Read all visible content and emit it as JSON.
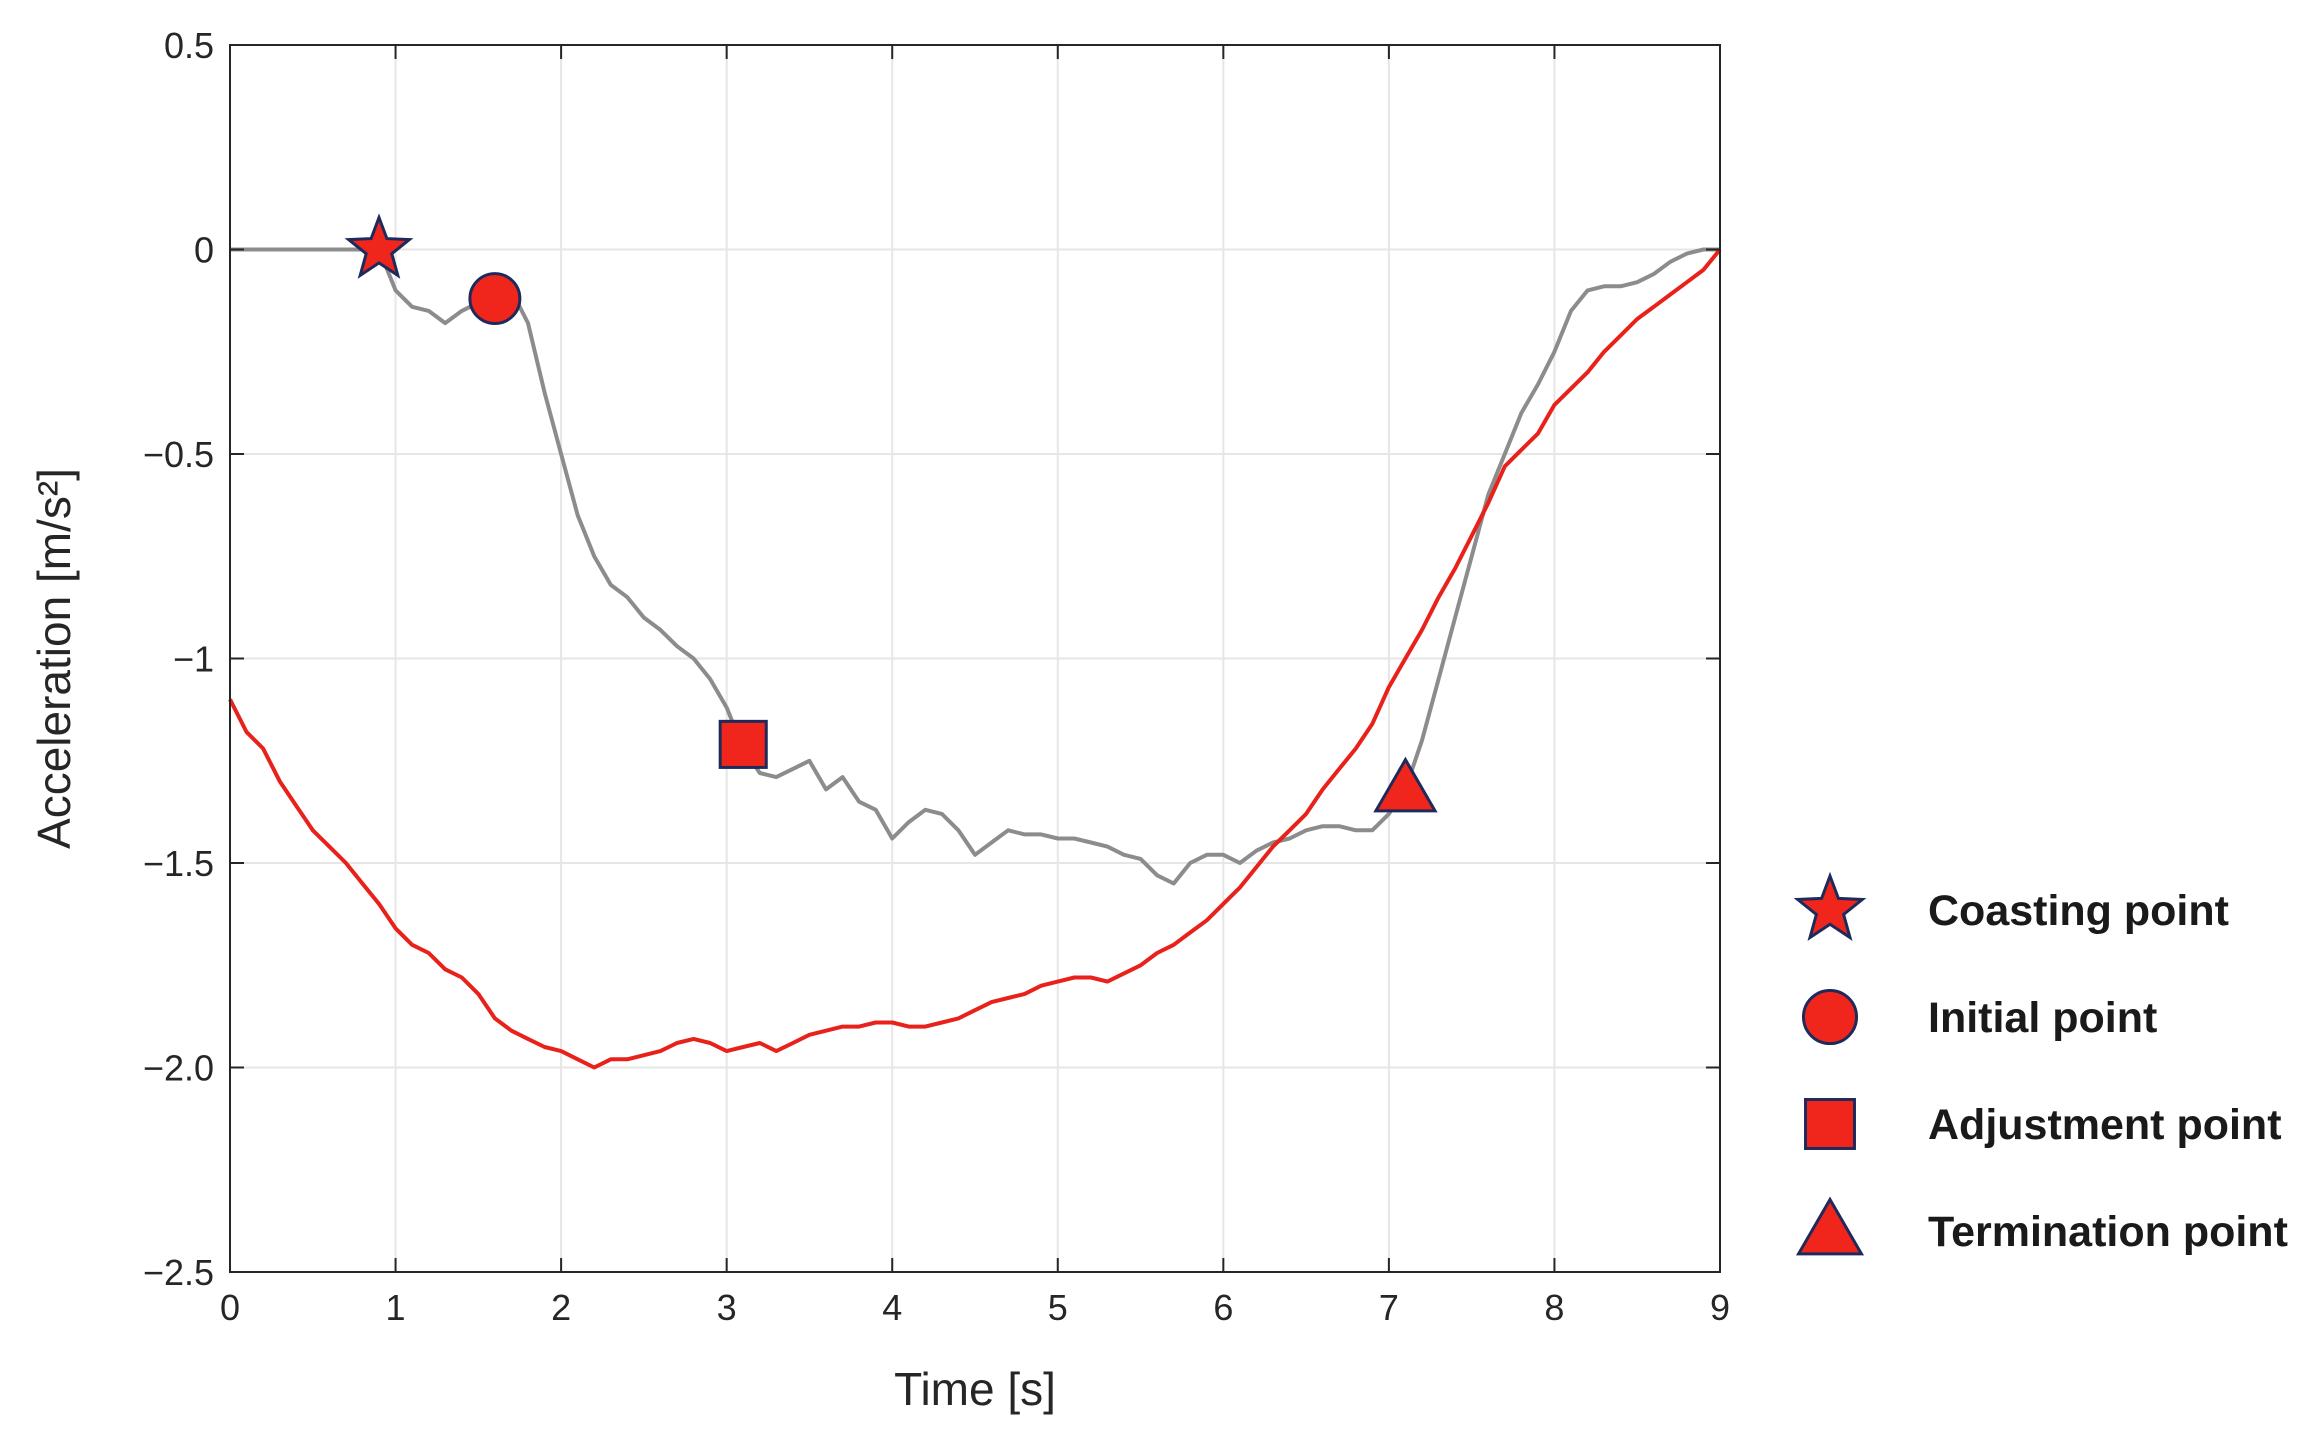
{
  "chart_data": {
    "type": "line",
    "xlabel": "Time [s]",
    "ylabel": "Acceleration [m/s²]",
    "xlim": [
      0,
      9
    ],
    "ylim": [
      -2.5,
      0.5
    ],
    "xticks": [
      0,
      1,
      2,
      3,
      4,
      5,
      6,
      7,
      8,
      9
    ],
    "xtick_labels": [
      "0",
      "1",
      "2",
      "3",
      "4",
      "5",
      "6",
      "7",
      "8",
      "9"
    ],
    "yticks": [
      0.5,
      0,
      -0.5,
      -1,
      -1.5,
      -2.0,
      -2.5
    ],
    "ytick_labels": [
      "0.5",
      "0",
      "−0.5",
      "−1",
      "−1.5",
      "−2.0",
      "−2.5"
    ],
    "grid": true,
    "series": [
      {
        "color": "#8c8c8c",
        "points": [
          [
            0,
            0
          ],
          [
            0.5,
            0
          ],
          [
            0.9,
            0
          ],
          [
            1.0,
            -0.1
          ],
          [
            1.1,
            -0.14
          ],
          [
            1.2,
            -0.15
          ],
          [
            1.3,
            -0.18
          ],
          [
            1.4,
            -0.15
          ],
          [
            1.5,
            -0.13
          ],
          [
            1.6,
            -0.12
          ],
          [
            1.7,
            -0.1
          ],
          [
            1.8,
            -0.18
          ],
          [
            1.9,
            -0.35
          ],
          [
            2.0,
            -0.5
          ],
          [
            2.1,
            -0.65
          ],
          [
            2.2,
            -0.75
          ],
          [
            2.3,
            -0.82
          ],
          [
            2.4,
            -0.85
          ],
          [
            2.5,
            -0.9
          ],
          [
            2.6,
            -0.93
          ],
          [
            2.7,
            -0.97
          ],
          [
            2.8,
            -1.0
          ],
          [
            2.9,
            -1.05
          ],
          [
            3.0,
            -1.12
          ],
          [
            3.1,
            -1.22
          ],
          [
            3.2,
            -1.28
          ],
          [
            3.3,
            -1.29
          ],
          [
            3.4,
            -1.27
          ],
          [
            3.5,
            -1.25
          ],
          [
            3.6,
            -1.32
          ],
          [
            3.7,
            -1.29
          ],
          [
            3.8,
            -1.35
          ],
          [
            3.9,
            -1.37
          ],
          [
            4.0,
            -1.44
          ],
          [
            4.1,
            -1.4
          ],
          [
            4.2,
            -1.37
          ],
          [
            4.3,
            -1.38
          ],
          [
            4.4,
            -1.42
          ],
          [
            4.5,
            -1.48
          ],
          [
            4.6,
            -1.45
          ],
          [
            4.7,
            -1.42
          ],
          [
            4.8,
            -1.43
          ],
          [
            4.9,
            -1.43
          ],
          [
            5.0,
            -1.44
          ],
          [
            5.1,
            -1.44
          ],
          [
            5.2,
            -1.45
          ],
          [
            5.3,
            -1.46
          ],
          [
            5.4,
            -1.48
          ],
          [
            5.5,
            -1.49
          ],
          [
            5.6,
            -1.53
          ],
          [
            5.7,
            -1.55
          ],
          [
            5.8,
            -1.5
          ],
          [
            5.9,
            -1.48
          ],
          [
            6.0,
            -1.48
          ],
          [
            6.1,
            -1.5
          ],
          [
            6.2,
            -1.47
          ],
          [
            6.3,
            -1.45
          ],
          [
            6.4,
            -1.44
          ],
          [
            6.5,
            -1.42
          ],
          [
            6.6,
            -1.41
          ],
          [
            6.7,
            -1.41
          ],
          [
            6.8,
            -1.42
          ],
          [
            6.9,
            -1.42
          ],
          [
            7.0,
            -1.38
          ],
          [
            7.1,
            -1.32
          ],
          [
            7.2,
            -1.2
          ],
          [
            7.3,
            -1.05
          ],
          [
            7.4,
            -0.9
          ],
          [
            7.5,
            -0.75
          ],
          [
            7.6,
            -0.6
          ],
          [
            7.7,
            -0.5
          ],
          [
            7.8,
            -0.4
          ],
          [
            7.9,
            -0.33
          ],
          [
            8.0,
            -0.25
          ],
          [
            8.1,
            -0.15
          ],
          [
            8.2,
            -0.1
          ],
          [
            8.3,
            -0.09
          ],
          [
            8.4,
            -0.09
          ],
          [
            8.5,
            -0.08
          ],
          [
            8.6,
            -0.06
          ],
          [
            8.7,
            -0.03
          ],
          [
            8.8,
            -0.01
          ],
          [
            8.9,
            0
          ],
          [
            9.0,
            0
          ]
        ]
      },
      {
        "color": "#e8221b",
        "points": [
          [
            0,
            -1.1
          ],
          [
            0.1,
            -1.18
          ],
          [
            0.2,
            -1.22
          ],
          [
            0.3,
            -1.3
          ],
          [
            0.4,
            -1.36
          ],
          [
            0.5,
            -1.42
          ],
          [
            0.6,
            -1.46
          ],
          [
            0.7,
            -1.5
          ],
          [
            0.8,
            -1.55
          ],
          [
            0.9,
            -1.6
          ],
          [
            1.0,
            -1.66
          ],
          [
            1.1,
            -1.7
          ],
          [
            1.2,
            -1.72
          ],
          [
            1.3,
            -1.76
          ],
          [
            1.4,
            -1.78
          ],
          [
            1.5,
            -1.82
          ],
          [
            1.6,
            -1.88
          ],
          [
            1.7,
            -1.91
          ],
          [
            1.8,
            -1.93
          ],
          [
            1.9,
            -1.95
          ],
          [
            2.0,
            -1.96
          ],
          [
            2.1,
            -1.98
          ],
          [
            2.2,
            -2.0
          ],
          [
            2.3,
            -1.98
          ],
          [
            2.4,
            -1.98
          ],
          [
            2.5,
            -1.97
          ],
          [
            2.6,
            -1.96
          ],
          [
            2.7,
            -1.94
          ],
          [
            2.8,
            -1.93
          ],
          [
            2.9,
            -1.94
          ],
          [
            3.0,
            -1.96
          ],
          [
            3.1,
            -1.95
          ],
          [
            3.2,
            -1.94
          ],
          [
            3.3,
            -1.96
          ],
          [
            3.4,
            -1.94
          ],
          [
            3.5,
            -1.92
          ],
          [
            3.6,
            -1.91
          ],
          [
            3.7,
            -1.9
          ],
          [
            3.8,
            -1.9
          ],
          [
            3.9,
            -1.89
          ],
          [
            4.0,
            -1.89
          ],
          [
            4.1,
            -1.9
          ],
          [
            4.2,
            -1.9
          ],
          [
            4.3,
            -1.89
          ],
          [
            4.4,
            -1.88
          ],
          [
            4.5,
            -1.86
          ],
          [
            4.6,
            -1.84
          ],
          [
            4.7,
            -1.83
          ],
          [
            4.8,
            -1.82
          ],
          [
            4.9,
            -1.8
          ],
          [
            5.0,
            -1.79
          ],
          [
            5.1,
            -1.78
          ],
          [
            5.2,
            -1.78
          ],
          [
            5.3,
            -1.79
          ],
          [
            5.4,
            -1.77
          ],
          [
            5.5,
            -1.75
          ],
          [
            5.6,
            -1.72
          ],
          [
            5.7,
            -1.7
          ],
          [
            5.8,
            -1.67
          ],
          [
            5.9,
            -1.64
          ],
          [
            6.0,
            -1.6
          ],
          [
            6.1,
            -1.56
          ],
          [
            6.2,
            -1.51
          ],
          [
            6.3,
            -1.46
          ],
          [
            6.4,
            -1.42
          ],
          [
            6.5,
            -1.38
          ],
          [
            6.6,
            -1.32
          ],
          [
            6.7,
            -1.27
          ],
          [
            6.8,
            -1.22
          ],
          [
            6.9,
            -1.16
          ],
          [
            7.0,
            -1.07
          ],
          [
            7.1,
            -1.0
          ],
          [
            7.2,
            -0.93
          ],
          [
            7.3,
            -0.85
          ],
          [
            7.4,
            -0.78
          ],
          [
            7.5,
            -0.7
          ],
          [
            7.6,
            -0.62
          ],
          [
            7.7,
            -0.53
          ],
          [
            7.8,
            -0.49
          ],
          [
            7.9,
            -0.45
          ],
          [
            8.0,
            -0.38
          ],
          [
            8.1,
            -0.34
          ],
          [
            8.2,
            -0.3
          ],
          [
            8.3,
            -0.25
          ],
          [
            8.4,
            -0.21
          ],
          [
            8.5,
            -0.17
          ],
          [
            8.6,
            -0.14
          ],
          [
            8.7,
            -0.11
          ],
          [
            8.8,
            -0.08
          ],
          [
            8.9,
            -0.05
          ],
          [
            9.0,
            0
          ]
        ]
      }
    ],
    "markers": [
      {
        "shape": "star",
        "x": 0.9,
        "y": 0.0,
        "label": "Coasting point"
      },
      {
        "shape": "circle",
        "x": 1.6,
        "y": -0.12,
        "label": "Initial point"
      },
      {
        "shape": "square",
        "x": 3.1,
        "y": -1.21,
        "label": "Adjustment point"
      },
      {
        "shape": "triangle",
        "x": 7.1,
        "y": -1.32,
        "label": "Termination point"
      }
    ],
    "marker_fill": "#f0261c",
    "marker_edge": "#1f2a5c",
    "legend_placement": "bottom-right, outside plot"
  }
}
